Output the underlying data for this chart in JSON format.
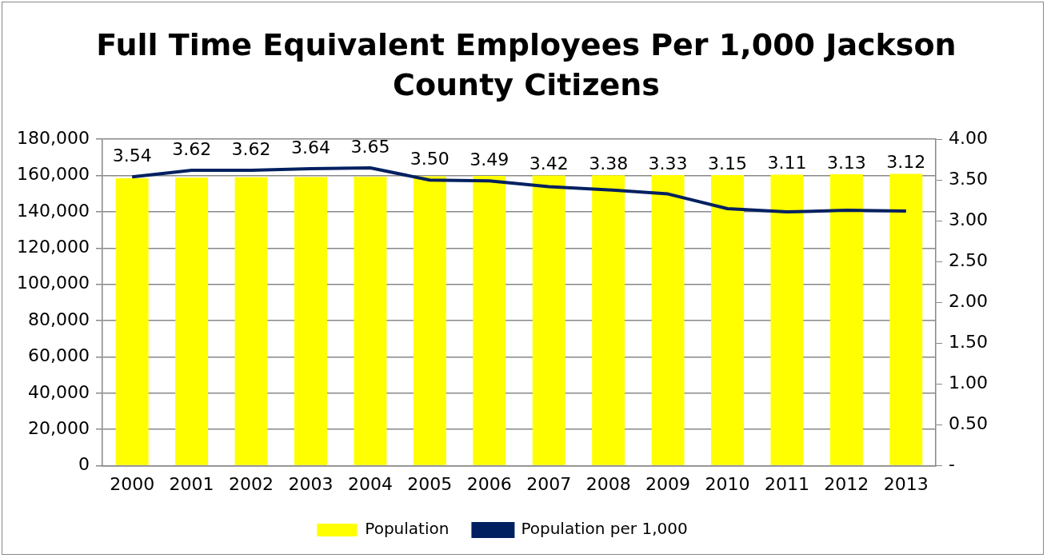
{
  "chart_data": {
    "type": "bar",
    "title": "Full Time Equivalent Employees Per 1,000 Jackson County Citizens",
    "categories": [
      "2000",
      "2001",
      "2002",
      "2003",
      "2004",
      "2005",
      "2006",
      "2007",
      "2008",
      "2009",
      "2010",
      "2011",
      "2012",
      "2013"
    ],
    "series": [
      {
        "name": "Population",
        "color": "#ffff00",
        "values": [
          158500,
          158800,
          159000,
          159200,
          159300,
          159600,
          159800,
          160000,
          160100,
          160200,
          160300,
          160500,
          160700,
          160900
        ]
      },
      {
        "name": "Population per 1,000",
        "type": "line",
        "axis": "y2",
        "color": "#002060",
        "marker": "none",
        "values": [
          3.54,
          3.62,
          3.62,
          3.64,
          3.65,
          3.5,
          3.49,
          3.42,
          3.38,
          3.33,
          3.15,
          3.11,
          3.13,
          3.12
        ],
        "value_labels": [
          "3.54",
          "3.62",
          "3.62",
          "3.64",
          "3.65",
          "3.50",
          "3.49",
          "3.42",
          "3.38",
          "3.33",
          "3.15",
          "3.11",
          "3.13",
          "3.12"
        ]
      }
    ],
    "ylim": [
      0,
      180000
    ],
    "yticks": [
      0,
      {
        "value": 20000,
        "label": "20,000"
      },
      {
        "value": 40000,
        "label": "40,000"
      },
      {
        "value": 60000,
        "label": "60,000"
      },
      {
        "value": 80000,
        "label": "80,000"
      },
      {
        "value": 100000,
        "label": "100,000"
      },
      {
        "value": 120000,
        "label": "120,000"
      },
      {
        "value": 140000,
        "label": "140,000"
      },
      {
        "value": 160000,
        "label": "160,000"
      },
      {
        "value": 180000,
        "label": "180,000"
      }
    ],
    "y2lim": [
      0,
      4
    ],
    "y2ticks": [
      {
        "value": 0,
        "label": "-"
      },
      {
        "value": 0.5,
        "label": "0.50"
      },
      {
        "value": 1,
        "label": "1.00"
      },
      {
        "value": 1.5,
        "label": "1.50"
      },
      {
        "value": 2,
        "label": "2.00"
      },
      {
        "value": 2.5,
        "label": "2.50"
      },
      {
        "value": 3,
        "label": "3.00"
      },
      {
        "value": 3.5,
        "label": "3.50"
      },
      {
        "value": 4,
        "label": "4.00"
      }
    ],
    "grid": "y",
    "legend": "bottom"
  }
}
